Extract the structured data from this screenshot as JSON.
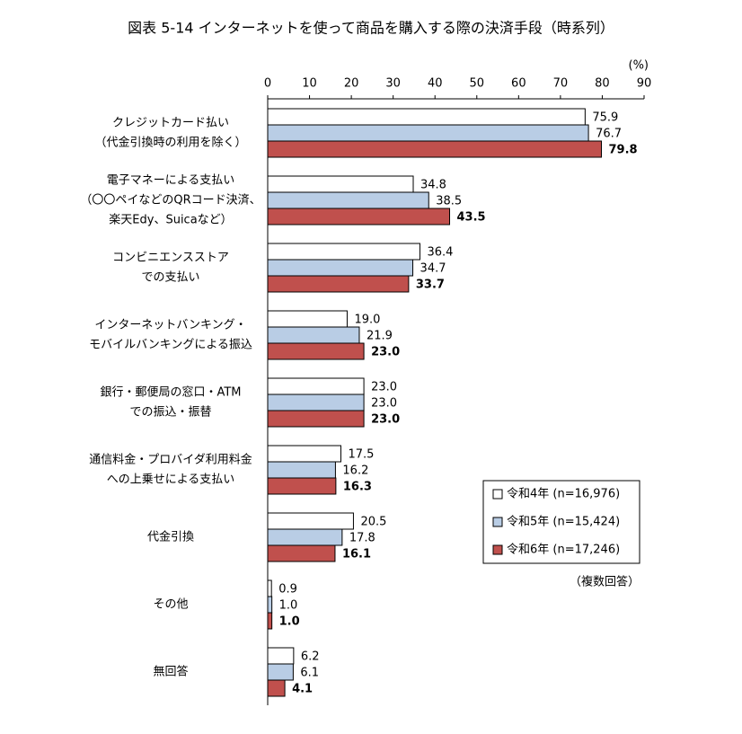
{
  "chart_data": {
    "type": "bar",
    "orientation": "horizontal",
    "title": "図表 5-14 インターネットを使って商品を購入する際の決済手段（時系列）",
    "unit_label": "(%)",
    "note": "（複数回答）",
    "categories": [
      [
        "クレジットカード払い",
        "（代金引換時の利用を除く）"
      ],
      [
        "電子マネーによる支払い",
        "（〇〇ペイなどのQRコード決済、",
        "楽天Edy、Suicaなど）"
      ],
      [
        "コンビニエンスストア",
        "での支払い"
      ],
      [
        "インターネットバンキング・",
        "モバイルバンキングによる振込"
      ],
      [
        "銀行・郵便局の窓口・ATM",
        "での振込・振替"
      ],
      [
        "通信料金・プロバイダ利用料金",
        "への上乗せによる支払い"
      ],
      [
        "代金引換"
      ],
      [
        "その他"
      ],
      [
        "無回答"
      ]
    ],
    "series": [
      {
        "name": "令和4年 (n=16,976)",
        "color": "#ffffff",
        "values": [
          75.9,
          34.8,
          36.4,
          19.0,
          23.0,
          17.5,
          20.5,
          0.9,
          6.2
        ],
        "value_labels": [
          "75.9",
          "34.8",
          "36.4",
          "19.0",
          "23.0",
          "17.5",
          "20.5",
          "0.9",
          "6.2"
        ]
      },
      {
        "name": "令和5年 (n=15,424)",
        "color": "#b9cde5",
        "values": [
          76.7,
          38.5,
          34.7,
          21.9,
          23.0,
          16.2,
          17.8,
          1.0,
          6.1
        ],
        "value_labels": [
          "76.7",
          "38.5",
          "34.7",
          "21.9",
          "23.0",
          "16.2",
          "17.8",
          "1.0",
          "6.1"
        ]
      },
      {
        "name": "令和6年 (n=17,246)",
        "color": "#c0504d",
        "values": [
          79.8,
          43.5,
          33.7,
          23.0,
          23.0,
          16.3,
          16.1,
          1.0,
          4.1
        ],
        "value_labels": [
          "79.8",
          "43.5",
          "33.7",
          "23.0",
          "23.0",
          "16.3",
          "16.1",
          "1.0",
          "4.1"
        ]
      }
    ],
    "xlim": [
      0,
      90
    ],
    "xticks": [
      0,
      10,
      20,
      30,
      40,
      50,
      60,
      70,
      80,
      90
    ]
  }
}
